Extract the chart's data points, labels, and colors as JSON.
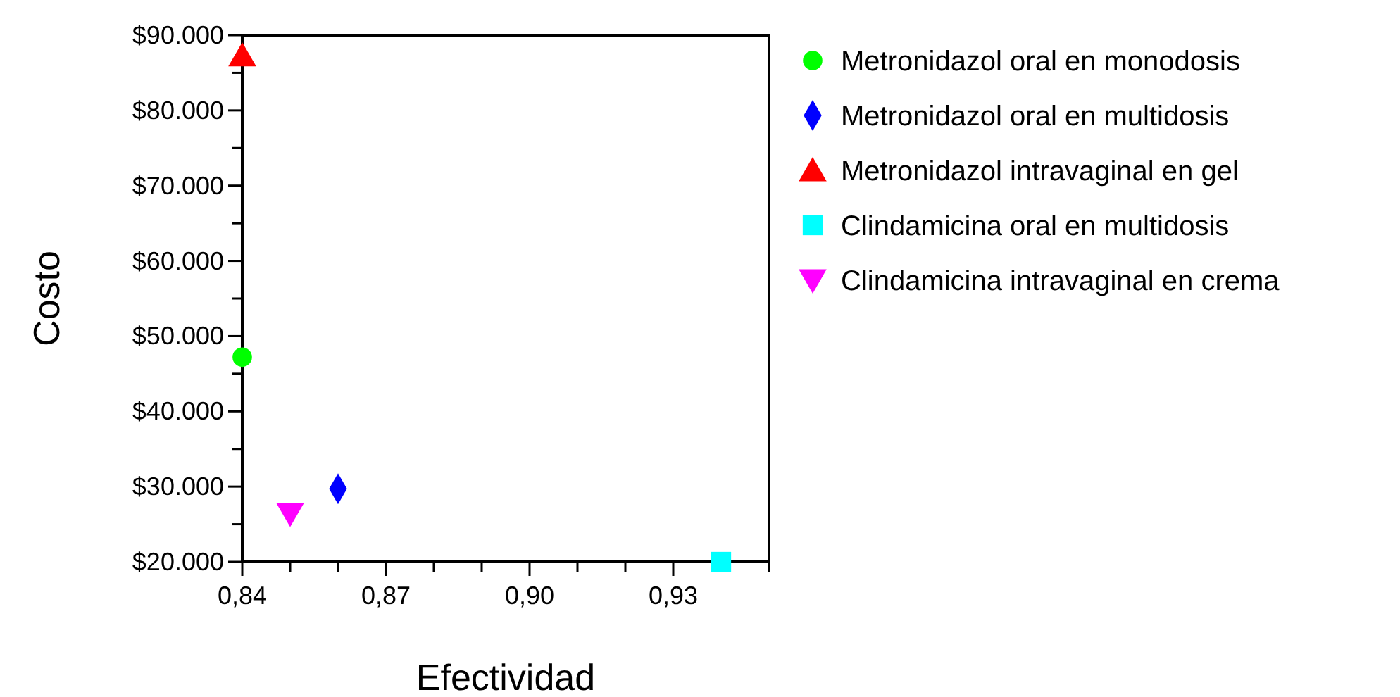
{
  "chart_data": {
    "type": "scatter",
    "xlabel": "Efectividad",
    "ylabel": "Costo",
    "xlim": [
      0.84,
      0.95
    ],
    "xticks": [
      {
        "value": 0.84,
        "label": "0,84"
      },
      {
        "value": 0.85,
        "label": null
      },
      {
        "value": 0.86,
        "label": null
      },
      {
        "value": 0.87,
        "label": "0,87"
      },
      {
        "value": 0.88,
        "label": null
      },
      {
        "value": 0.89,
        "label": null
      },
      {
        "value": 0.9,
        "label": "0,90"
      },
      {
        "value": 0.91,
        "label": null
      },
      {
        "value": 0.92,
        "label": null
      },
      {
        "value": 0.93,
        "label": "0,93"
      },
      {
        "value": 0.94,
        "label": null
      },
      {
        "value": 0.95,
        "label": null
      }
    ],
    "ylim": [
      20000,
      90000
    ],
    "yticks": [
      {
        "value": 20000,
        "label": "$20.000"
      },
      {
        "value": 25000,
        "label": null
      },
      {
        "value": 30000,
        "label": "$30.000"
      },
      {
        "value": 35000,
        "label": null
      },
      {
        "value": 40000,
        "label": "$40.000"
      },
      {
        "value": 45000,
        "label": null
      },
      {
        "value": 50000,
        "label": "$50.000"
      },
      {
        "value": 55000,
        "label": null
      },
      {
        "value": 60000,
        "label": "$60.000"
      },
      {
        "value": 65000,
        "label": null
      },
      {
        "value": 70000,
        "label": "$70.000"
      },
      {
        "value": 75000,
        "label": null
      },
      {
        "value": 80000,
        "label": "$80.000"
      },
      {
        "value": 85000,
        "label": null
      },
      {
        "value": 90000,
        "label": "$90.000"
      }
    ],
    "grid": false,
    "legend": "right",
    "series": [
      {
        "name": "Metronidazol oral en monodosis",
        "color": "#00ff00",
        "marker": "circle",
        "x": [
          0.84
        ],
        "values": [
          47200
        ]
      },
      {
        "name": "Metronidazol oral en multidosis",
        "color": "#0000ff",
        "marker": "diamond",
        "x": [
          0.86
        ],
        "values": [
          29700
        ]
      },
      {
        "name": "Metronidazol intravaginal en gel",
        "color": "#ff0000",
        "marker": "triangle",
        "x": [
          0.84
        ],
        "values": [
          87300
        ]
      },
      {
        "name": "Clindamicina oral en multidosis",
        "color": "#00ffff",
        "marker": "square",
        "x": [
          0.94
        ],
        "values": [
          20000
        ]
      },
      {
        "name": "Clindamicina intravaginal en crema",
        "color": "#ff00ff",
        "marker": "triangle-down",
        "x": [
          0.85
        ],
        "values": [
          26400
        ]
      }
    ]
  }
}
